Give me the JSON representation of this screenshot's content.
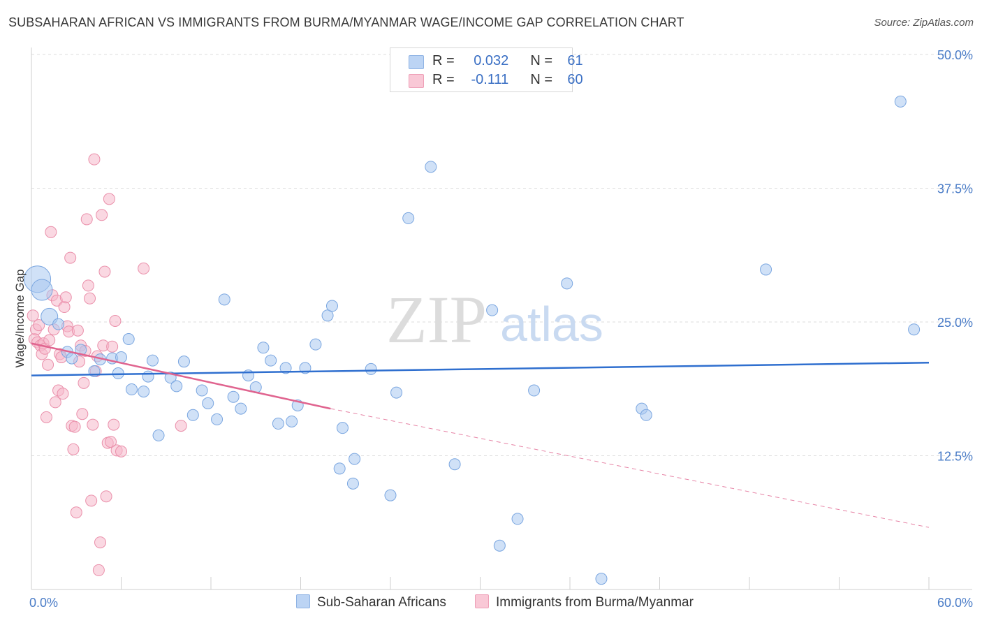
{
  "header": {
    "title": "SUBSAHARAN AFRICAN VS IMMIGRANTS FROM BURMA/MYANMAR WAGE/INCOME GAP CORRELATION CHART",
    "source": "Source: ZipAtlas.com"
  },
  "legend": {
    "rows": [
      {
        "r_label": "R =",
        "r_value": "0.032",
        "n_label": "N =",
        "n_value": "61"
      },
      {
        "r_label": "R =",
        "r_value": "-0.111",
        "n_label": "N =",
        "n_value": "60"
      }
    ]
  },
  "bottom_legend": {
    "series_a": "Sub-Saharan Africans",
    "series_b": "Immigrants from Burma/Myanmar"
  },
  "colors": {
    "blue_fill": "#a9c8f0",
    "blue_stroke": "#7aa6e0",
    "blue_line": "#2f6fcf",
    "pink_fill": "#f6b8cb",
    "pink_stroke": "#ea8faa",
    "pink_line": "#e0648f",
    "axis_text": "#4a7cc7"
  },
  "watermark": {
    "zip": "ZIP",
    "atlas": "atlas"
  },
  "chart_data": {
    "type": "scatter",
    "title": "SUBSAHARAN AFRICAN VS IMMIGRANTS FROM BURMA/MYANMAR WAGE/INCOME GAP CORRELATION CHART",
    "xlabel": "",
    "ylabel": "Wage/Income Gap",
    "xlim": [
      0,
      60
    ],
    "ylim": [
      0,
      50
    ],
    "x_tick_labels": [
      "0.0%",
      "60.0%"
    ],
    "y_ticks": [
      12.5,
      25.0,
      37.5,
      50.0
    ],
    "y_tick_labels": [
      "12.5%",
      "25.0%",
      "37.5%",
      "50.0%"
    ],
    "grid": true,
    "legend_position": "top-center",
    "series": [
      {
        "name": "Sub-Saharan Africans",
        "r": 0.032,
        "n": 61,
        "trend": {
          "x": [
            0,
            60
          ],
          "y": [
            20.0,
            21.2
          ]
        },
        "points": [
          [
            0.4,
            29.0
          ],
          [
            0.7,
            28.0
          ],
          [
            1.2,
            25.5
          ],
          [
            1.8,
            24.8
          ],
          [
            2.4,
            22.2
          ],
          [
            2.7,
            21.6
          ],
          [
            3.3,
            22.4
          ],
          [
            4.2,
            20.4
          ],
          [
            4.6,
            21.5
          ],
          [
            5.4,
            21.6
          ],
          [
            5.8,
            20.2
          ],
          [
            6.0,
            21.7
          ],
          [
            6.5,
            23.4
          ],
          [
            6.7,
            18.7
          ],
          [
            7.5,
            18.5
          ],
          [
            7.8,
            19.9
          ],
          [
            8.1,
            21.4
          ],
          [
            8.5,
            14.4
          ],
          [
            9.3,
            19.8
          ],
          [
            9.7,
            19.0
          ],
          [
            10.2,
            21.3
          ],
          [
            10.8,
            16.3
          ],
          [
            11.4,
            18.6
          ],
          [
            11.8,
            17.4
          ],
          [
            12.4,
            15.9
          ],
          [
            12.9,
            27.1
          ],
          [
            13.5,
            18.0
          ],
          [
            14.0,
            16.9
          ],
          [
            14.5,
            20.0
          ],
          [
            15.0,
            18.9
          ],
          [
            15.5,
            22.6
          ],
          [
            16.0,
            21.4
          ],
          [
            16.5,
            15.5
          ],
          [
            17.0,
            20.7
          ],
          [
            17.4,
            15.7
          ],
          [
            17.8,
            17.2
          ],
          [
            18.3,
            20.7
          ],
          [
            19.0,
            22.9
          ],
          [
            19.8,
            25.6
          ],
          [
            20.1,
            26.5
          ],
          [
            20.6,
            11.3
          ],
          [
            20.8,
            15.1
          ],
          [
            21.5,
            9.9
          ],
          [
            21.6,
            12.2
          ],
          [
            22.7,
            20.6
          ],
          [
            24.0,
            8.8
          ],
          [
            24.4,
            18.4
          ],
          [
            25.2,
            34.7
          ],
          [
            26.7,
            39.5
          ],
          [
            28.3,
            11.7
          ],
          [
            30.8,
            26.1
          ],
          [
            31.3,
            4.1
          ],
          [
            32.5,
            6.6
          ],
          [
            33.6,
            18.6
          ],
          [
            35.8,
            28.6
          ],
          [
            38.1,
            1.0
          ],
          [
            40.8,
            16.9
          ],
          [
            41.1,
            16.3
          ],
          [
            49.1,
            29.9
          ],
          [
            58.1,
            45.6
          ],
          [
            59.0,
            24.3
          ]
        ]
      },
      {
        "name": "Immigrants from Burma/Myanmar",
        "r": -0.111,
        "n": 60,
        "trend": {
          "x": [
            0,
            20
          ],
          "y": [
            23.0,
            16.9
          ]
        },
        "trend_dashed": {
          "x": [
            20,
            60
          ],
          "y": [
            16.9,
            5.8
          ]
        },
        "points": [
          [
            0.1,
            25.6
          ],
          [
            0.2,
            23.4
          ],
          [
            0.3,
            24.3
          ],
          [
            0.4,
            23.1
          ],
          [
            0.5,
            24.7
          ],
          [
            0.6,
            22.8
          ],
          [
            0.7,
            22.0
          ],
          [
            0.8,
            23.0
          ],
          [
            0.9,
            22.5
          ],
          [
            1.0,
            16.1
          ],
          [
            1.1,
            21.0
          ],
          [
            1.2,
            23.3
          ],
          [
            1.3,
            33.4
          ],
          [
            1.4,
            27.5
          ],
          [
            1.5,
            24.3
          ],
          [
            1.6,
            17.5
          ],
          [
            1.7,
            27.0
          ],
          [
            1.8,
            18.6
          ],
          [
            1.9,
            22.0
          ],
          [
            2.0,
            21.7
          ],
          [
            2.1,
            18.3
          ],
          [
            2.2,
            26.4
          ],
          [
            2.3,
            27.3
          ],
          [
            2.4,
            24.6
          ],
          [
            2.5,
            24.1
          ],
          [
            2.6,
            31.0
          ],
          [
            2.7,
            15.3
          ],
          [
            2.8,
            13.1
          ],
          [
            2.9,
            15.2
          ],
          [
            3.0,
            7.2
          ],
          [
            3.1,
            24.2
          ],
          [
            3.2,
            21.3
          ],
          [
            3.3,
            22.8
          ],
          [
            3.4,
            16.4
          ],
          [
            3.5,
            19.3
          ],
          [
            3.6,
            22.3
          ],
          [
            3.7,
            34.6
          ],
          [
            3.8,
            28.4
          ],
          [
            3.9,
            27.2
          ],
          [
            4.0,
            8.3
          ],
          [
            4.1,
            15.4
          ],
          [
            4.2,
            40.2
          ],
          [
            4.3,
            20.4
          ],
          [
            4.4,
            21.8
          ],
          [
            4.5,
            1.8
          ],
          [
            4.6,
            4.4
          ],
          [
            4.7,
            35.0
          ],
          [
            4.8,
            22.8
          ],
          [
            4.9,
            29.7
          ],
          [
            5.0,
            8.7
          ],
          [
            5.1,
            13.7
          ],
          [
            5.2,
            36.5
          ],
          [
            5.3,
            13.8
          ],
          [
            5.4,
            22.7
          ],
          [
            5.5,
            15.4
          ],
          [
            5.6,
            25.1
          ],
          [
            5.7,
            13.0
          ],
          [
            6.0,
            12.9
          ],
          [
            7.5,
            30.0
          ],
          [
            10.0,
            15.3
          ]
        ]
      }
    ]
  }
}
